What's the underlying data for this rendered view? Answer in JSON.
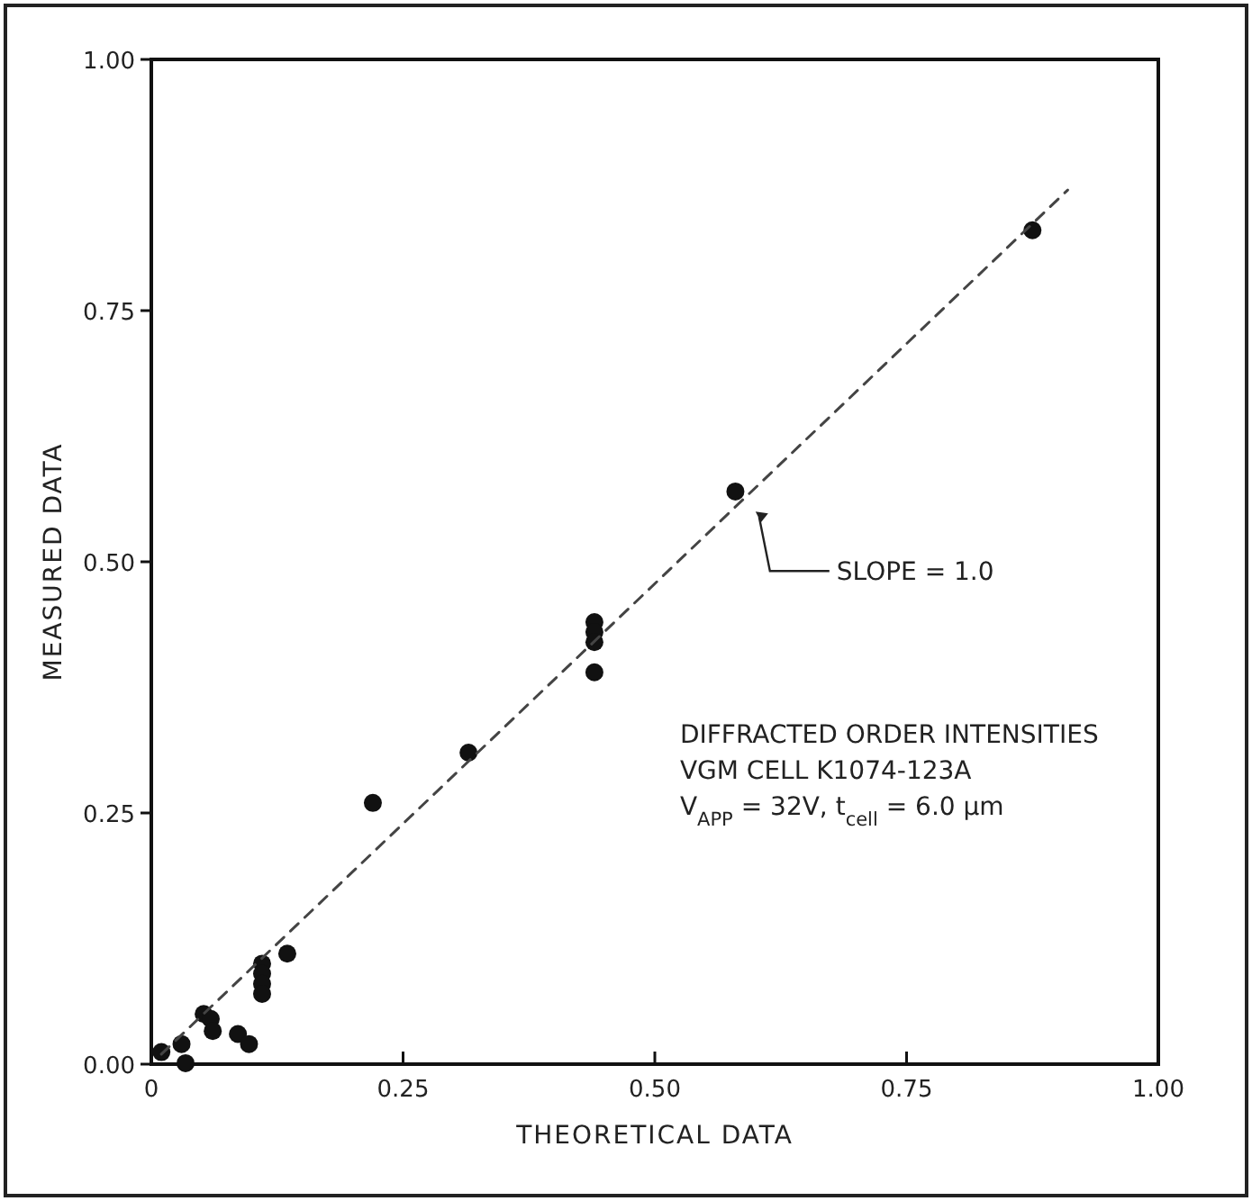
{
  "chart_data": {
    "type": "scatter",
    "xlabel": "THEORETICAL DATA",
    "ylabel": "MEASURED DATA",
    "xlim": [
      0,
      1
    ],
    "ylim": [
      0,
      1
    ],
    "xticks": [
      {
        "value": 0,
        "label": "0"
      },
      {
        "value": 0.25,
        "label": "0.25"
      },
      {
        "value": 0.5,
        "label": "0.50"
      },
      {
        "value": 0.75,
        "label": "0.75"
      },
      {
        "value": 1,
        "label": "1.00"
      }
    ],
    "yticks": [
      {
        "value": 0,
        "label": "0.00"
      },
      {
        "value": 0.25,
        "label": "0.25"
      },
      {
        "value": 0.5,
        "label": "0.50"
      },
      {
        "value": 0.75,
        "label": "0.75"
      },
      {
        "value": 1,
        "label": "1.00"
      }
    ],
    "grid": false,
    "series": [
      {
        "color": "#111111",
        "marker": "circle",
        "x": [
          0.875,
          0.58,
          0.44,
          0.44,
          0.44,
          0.44,
          0.315,
          0.22,
          0.135,
          0.11,
          0.11,
          0.11,
          0.11,
          0.086,
          0.097,
          0.052,
          0.059,
          0.061,
          0.03,
          0.034,
          0.01
        ],
        "values": [
          0.83,
          0.57,
          0.44,
          0.43,
          0.42,
          0.39,
          0.31,
          0.26,
          0.11,
          0.1,
          0.09,
          0.08,
          0.07,
          0.03,
          0.02,
          0.05,
          0.045,
          0.033,
          0.02,
          0.001,
          0.012
        ]
      },
      {
        "type": "line",
        "color": "#444444",
        "line_style": "dashed",
        "marker": "none",
        "x": [
          0.01,
          0.91
        ],
        "values": [
          0.01,
          0.87
        ]
      }
    ],
    "annotations": [
      "SLOPE = 1.0",
      "DIFFRACTED ORDER INTENSITIES",
      "VGM CELL K1074-123A",
      "V$_{APP}$ = 32V, t$_{cell}$ = 6.0 μm"
    ]
  }
}
